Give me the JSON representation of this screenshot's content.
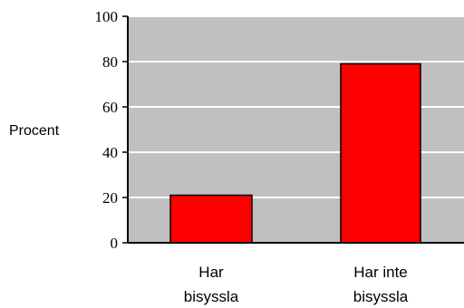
{
  "chart_data": {
    "type": "bar",
    "title": "",
    "xlabel": "",
    "ylabel": "Procent",
    "categories": [
      [
        "Har",
        "bisyssla"
      ],
      [
        "Har inte",
        "bisyssla"
      ]
    ],
    "values": [
      21,
      79
    ],
    "ylim": [
      0,
      100
    ],
    "yticks": [
      0,
      20,
      40,
      60,
      80,
      100
    ],
    "grid": true,
    "legend": "none",
    "colors": {
      "plot_background": "#c0c0c0",
      "bar_fill": "#ff0000",
      "bar_stroke": "#000000",
      "gridline": "#ffffff",
      "axis": "#000000"
    }
  }
}
